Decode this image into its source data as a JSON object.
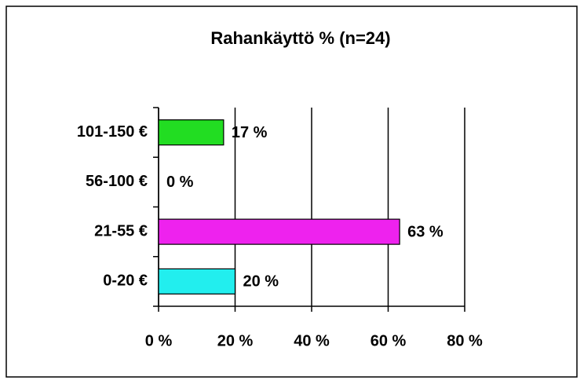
{
  "chart_data": {
    "type": "hbar",
    "title": "Rahankäyttö % (n=24)",
    "categories": [
      "101-150 €",
      "56-100 €",
      "21-55 €",
      "0-20 €"
    ],
    "values": [
      17,
      0,
      63,
      20
    ],
    "value_labels": [
      "17 %",
      "0 %",
      "63 %",
      "20 %"
    ],
    "colors": [
      "#22dd22",
      null,
      "#ee22ee",
      "#22eeee"
    ],
    "xlim": [
      0,
      80
    ],
    "xticks": [
      {
        "value": 0,
        "label": "0 %"
      },
      {
        "value": 20,
        "label": "20 %"
      },
      {
        "value": 40,
        "label": "40 %"
      },
      {
        "value": 60,
        "label": "60 %"
      },
      {
        "value": 80,
        "label": "80 %"
      }
    ],
    "grid": true
  }
}
